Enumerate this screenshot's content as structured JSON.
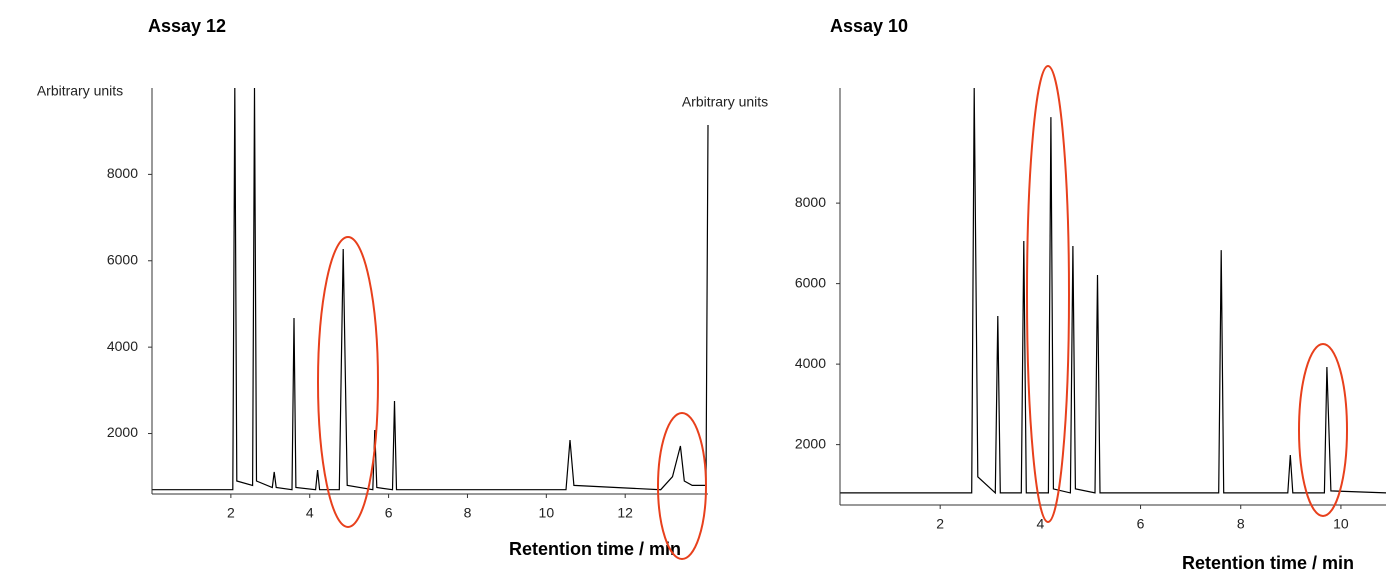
{
  "chart_data": [
    {
      "type": "line",
      "title": "Assay 12",
      "ylabel": "Arbitrary units",
      "xlabel": "Retention time / min",
      "color": "#000000",
      "xlim": [
        0,
        14.1
      ],
      "ylim": [
        600,
        10000
      ],
      "xticks": [
        2,
        4,
        6,
        8,
        10,
        12
      ],
      "yticks": [
        2000,
        4000,
        6000,
        8000
      ],
      "x": [
        0,
        2.05,
        2.1,
        2.15,
        2.55,
        2.6,
        2.65,
        3.05,
        3.1,
        3.15,
        3.55,
        3.6,
        3.65,
        4.15,
        4.2,
        4.25,
        4.75,
        4.85,
        4.95,
        5.6,
        5.65,
        5.7,
        6.1,
        6.15,
        6.2,
        10.5,
        10.6,
        10.7,
        12.9,
        13.2,
        13.4,
        13.5,
        13.7,
        14.05,
        14.1
      ],
      "values": [
        700,
        700,
        10000,
        900,
        800,
        10000,
        900,
        750,
        1109,
        750,
        700,
        4675,
        750,
        700,
        1156,
        700,
        700,
        6272,
        800,
        700,
        2082,
        750,
        700,
        2753,
        700,
        700,
        1850,
        800,
        700,
        1000,
        1711,
        900,
        800,
        800,
        9143
      ]
    },
    {
      "type": "line",
      "title": "Assay 10",
      "ylabel": "Arbitrary units",
      "xlabel": "Retention time / min",
      "color": "#000000",
      "xlim": [
        0,
        10.9
      ],
      "ylim": [
        500,
        10860
      ],
      "xticks": [
        2,
        4,
        6,
        8,
        10
      ],
      "yticks": [
        2000,
        4000,
        6000,
        8000
      ],
      "x": [
        0,
        2.63,
        2.68,
        2.75,
        3.1,
        3.15,
        3.2,
        3.62,
        3.67,
        3.72,
        4.16,
        4.21,
        4.26,
        4.6,
        4.65,
        4.7,
        5.09,
        5.14,
        5.19,
        7.56,
        7.61,
        7.66,
        8.94,
        8.99,
        9.04,
        9.67,
        9.72,
        9.8,
        10.9
      ],
      "values": [
        800,
        800,
        10860,
        1200,
        800,
        5195,
        800,
        800,
        7058,
        800,
        800,
        10138,
        900,
        800,
        6934,
        900,
        800,
        6213,
        800,
        800,
        6834,
        800,
        800,
        1742,
        800,
        800,
        3928,
        850,
        800
      ]
    }
  ]
}
